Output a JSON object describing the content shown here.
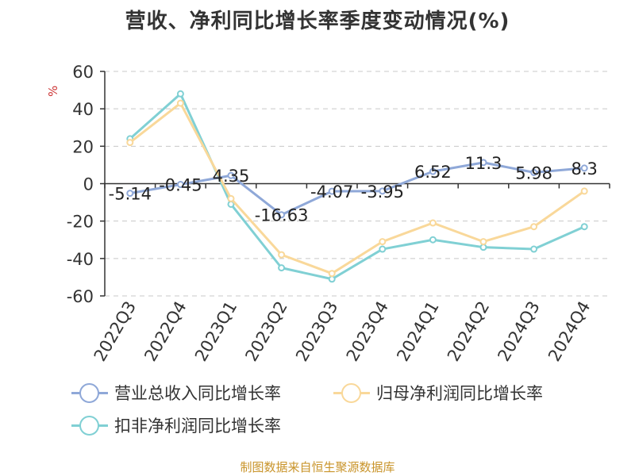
{
  "title": "营收、净利同比增长率季度变动情况(%)",
  "unit": "%",
  "source": "制图数据来自恒生聚源数据库",
  "chart_data": {
    "type": "line",
    "categories": [
      "2022Q3",
      "2022Q4",
      "2023Q1",
      "2023Q2",
      "2023Q3",
      "2023Q4",
      "2024Q1",
      "2024Q2",
      "2024Q3",
      "2024Q4"
    ],
    "ylim": [
      -60,
      60
    ],
    "yticks": [
      60,
      40,
      20,
      0,
      -20,
      -40,
      -60
    ],
    "grid": true,
    "legend_position": "bottom",
    "series": [
      {
        "name": "营业总收入同比增长率",
        "color": "#8fa8d8",
        "values": [
          -5.14,
          -0.45,
          4.35,
          -16.63,
          -4.07,
          -3.95,
          6.52,
          11.3,
          5.98,
          8.3
        ],
        "labels": [
          "-5.14",
          "-0.45",
          "4.35",
          "-16.63",
          "-4.07",
          "-3.95",
          "6.52",
          "11.3",
          "5.98",
          "8.3"
        ]
      },
      {
        "name": "归母净利润同比增长率",
        "color": "#f9d89a",
        "values": [
          22,
          43,
          -8,
          -38,
          -48,
          -31,
          -21,
          -31,
          -23,
          -4
        ]
      },
      {
        "name": "扣非净利润同比增长率",
        "color": "#80d0d4",
        "values": [
          24,
          48,
          -11,
          -45,
          -51,
          -35,
          -30,
          -34,
          -35,
          -23
        ]
      }
    ]
  }
}
